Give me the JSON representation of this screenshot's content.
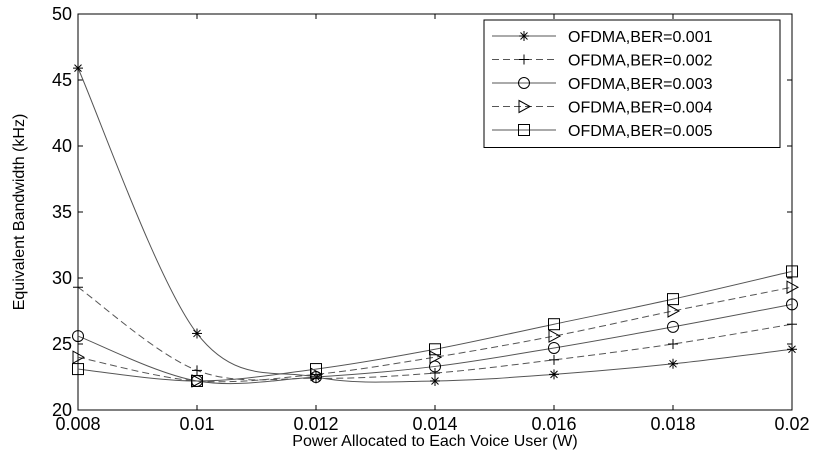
{
  "chart_data": {
    "type": "line",
    "xlabel": "Power Allocated to Each Voice User (W)",
    "ylabel": "Equivalent Bandwidth (kHz)",
    "xlim": [
      0.008,
      0.02
    ],
    "ylim": [
      20,
      50
    ],
    "x_ticks": [
      "0.008",
      "0.01",
      "0.012",
      "0.014",
      "0.016",
      "0.018",
      "0.02"
    ],
    "y_ticks": [
      "20",
      "25",
      "30",
      "35",
      "40",
      "45",
      "50"
    ],
    "grid": false,
    "legend_position": "top-right",
    "x": [
      0.008,
      0.01,
      0.012,
      0.014,
      0.016,
      0.018,
      0.02
    ],
    "series": [
      {
        "name": "OFDMA,BER=0.001",
        "marker": "star",
        "dash": "solid",
        "values": [
          45.9,
          25.8,
          22.5,
          22.2,
          22.7,
          23.5,
          24.6
        ]
      },
      {
        "name": "OFDMA,BER=0.002",
        "marker": "plus",
        "dash": "dashed",
        "values": [
          29.3,
          23.0,
          22.4,
          22.8,
          23.8,
          25.0,
          26.5
        ]
      },
      {
        "name": "OFDMA,BER=0.003",
        "marker": "circle",
        "dash": "solid",
        "values": [
          25.6,
          22.2,
          22.5,
          23.3,
          24.7,
          26.3,
          28.0
        ]
      },
      {
        "name": "OFDMA,BER=0.004",
        "marker": "triangle-right",
        "dash": "dashed",
        "values": [
          24.0,
          22.2,
          22.7,
          24.0,
          25.6,
          27.5,
          29.3
        ]
      },
      {
        "name": "OFDMA,BER=0.005",
        "marker": "square",
        "dash": "solid",
        "values": [
          23.1,
          22.2,
          23.1,
          24.6,
          26.5,
          28.4,
          30.5
        ]
      }
    ]
  }
}
